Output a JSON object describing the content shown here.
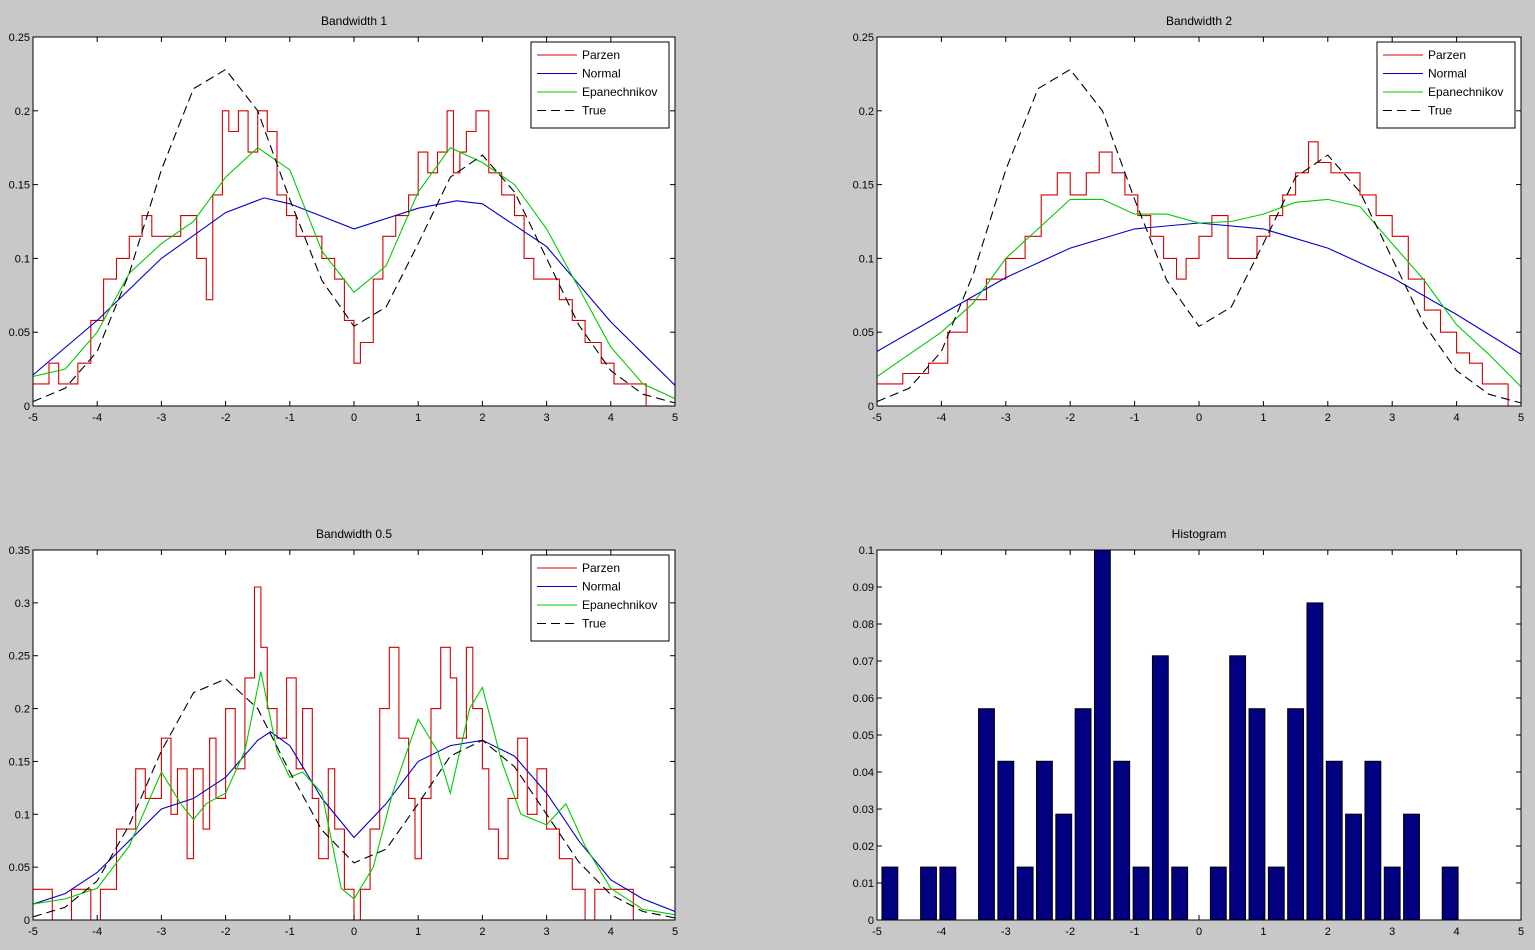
{
  "figure": {
    "background": "#c8c8c8",
    "colors": {
      "parzen": "#d40000",
      "normal": "#0000cc",
      "epanechnikov": "#00cc00",
      "true": "#000000",
      "hist": "#000080"
    }
  },
  "chart_data": [
    {
      "type": "line",
      "title": "Bandwidth 1",
      "xlim": [
        -5,
        5
      ],
      "ylim": [
        0,
        0.25
      ],
      "xticks": [
        "-5",
        "-4",
        "-3",
        "-2",
        "-1",
        "0",
        "1",
        "2",
        "3",
        "4",
        "5"
      ],
      "yticks": [
        "0",
        "0.05",
        "0.1",
        "0.15",
        "0.2",
        "0.25"
      ],
      "legend": {
        "position": "top-right",
        "entries": [
          "Parzen",
          "Normal",
          "Epanechnikov",
          "True"
        ]
      },
      "series": [
        {
          "name": "Parzen",
          "style": "solid",
          "color": "#d40000",
          "step": true,
          "x": [
            -5,
            -4.75,
            -4.6,
            -4.3,
            -4.1,
            -3.9,
            -3.7,
            -3.5,
            -3.3,
            -3.15,
            -3.0,
            -2.7,
            -2.45,
            -2.3,
            -2.2,
            -2.05,
            -1.95,
            -1.8,
            -1.65,
            -1.5,
            -1.35,
            -1.2,
            -1.05,
            -0.9,
            -0.7,
            -0.5,
            -0.3,
            -0.15,
            0,
            0.1,
            0.3,
            0.45,
            0.65,
            0.85,
            1.0,
            1.15,
            1.3,
            1.45,
            1.55,
            1.65,
            1.75,
            1.9,
            2.1,
            2.3,
            2.5,
            2.65,
            2.8,
            3.0,
            3.2,
            3.4,
            3.6,
            3.85,
            4.05,
            4.3,
            4.55,
            5
          ],
          "y": [
            0.015,
            0.029,
            0.015,
            0.029,
            0.058,
            0.086,
            0.1,
            0.115,
            0.129,
            0.115,
            0.115,
            0.129,
            0.1,
            0.072,
            0.143,
            0.2,
            0.186,
            0.2,
            0.172,
            0.2,
            0.186,
            0.143,
            0.129,
            0.115,
            0.115,
            0.1,
            0.086,
            0.058,
            0.029,
            0.043,
            0.086,
            0.115,
            0.129,
            0.143,
            0.172,
            0.158,
            0.172,
            0.2,
            0.158,
            0.172,
            0.186,
            0.2,
            0.158,
            0.143,
            0.129,
            0.1,
            0.086,
            0.086,
            0.072,
            0.058,
            0.043,
            0.029,
            0.015,
            0.015,
            0.0,
            0.0
          ]
        },
        {
          "name": "Normal",
          "style": "solid",
          "color": "#0000cc",
          "x": [
            -5,
            -4,
            -3,
            -2,
            -1.4,
            -1,
            0,
            1,
            1.6,
            2,
            3,
            4,
            5
          ],
          "y": [
            0.021,
            0.058,
            0.1,
            0.131,
            0.141,
            0.137,
            0.12,
            0.134,
            0.139,
            0.137,
            0.108,
            0.057,
            0.014
          ]
        },
        {
          "name": "Epanechnikov",
          "style": "solid",
          "color": "#00cc00",
          "x": [
            -5,
            -4.5,
            -4,
            -3.5,
            -3,
            -2.5,
            -2,
            -1.5,
            -1,
            -0.5,
            0,
            0.5,
            1,
            1.5,
            2,
            2.5,
            3,
            3.5,
            4,
            4.5,
            5
          ],
          "y": [
            0.02,
            0.025,
            0.05,
            0.09,
            0.11,
            0.125,
            0.155,
            0.175,
            0.16,
            0.105,
            0.077,
            0.095,
            0.145,
            0.175,
            0.165,
            0.15,
            0.12,
            0.08,
            0.04,
            0.015,
            0.005
          ]
        },
        {
          "name": "True",
          "style": "dashed",
          "color": "#000000",
          "x": [
            -5,
            -4.5,
            -4,
            -3.5,
            -3,
            -2.5,
            -2,
            -1.5,
            -1,
            -0.5,
            0,
            0.5,
            1,
            1.5,
            2,
            2.5,
            3,
            3.5,
            4,
            4.5,
            5
          ],
          "y": [
            0.003,
            0.012,
            0.037,
            0.09,
            0.16,
            0.215,
            0.228,
            0.2,
            0.14,
            0.085,
            0.054,
            0.067,
            0.11,
            0.155,
            0.17,
            0.145,
            0.1,
            0.055,
            0.024,
            0.008,
            0.002
          ]
        }
      ]
    },
    {
      "type": "line",
      "title": "Bandwidth 2",
      "xlim": [
        -5,
        5
      ],
      "ylim": [
        0,
        0.25
      ],
      "xticks": [
        "-5",
        "-4",
        "-3",
        "-2",
        "-1",
        "0",
        "1",
        "2",
        "3",
        "4",
        "5"
      ],
      "yticks": [
        "0",
        "0.05",
        "0.1",
        "0.15",
        "0.2",
        "0.25"
      ],
      "legend": {
        "position": "top-right",
        "entries": [
          "Parzen",
          "Normal",
          "Epanechnikov",
          "True"
        ]
      },
      "series": [
        {
          "name": "Parzen",
          "style": "solid",
          "color": "#d40000",
          "step": true,
          "x": [
            -5,
            -4.6,
            -4.2,
            -3.9,
            -3.6,
            -3.3,
            -3.0,
            -2.7,
            -2.45,
            -2.2,
            -2.0,
            -1.75,
            -1.55,
            -1.35,
            -1.15,
            -0.95,
            -0.75,
            -0.55,
            -0.35,
            -0.2,
            0,
            0.2,
            0.45,
            0.7,
            0.9,
            1.1,
            1.3,
            1.5,
            1.7,
            1.85,
            2.05,
            2.25,
            2.5,
            2.75,
            3.0,
            3.25,
            3.5,
            3.75,
            4.0,
            4.2,
            4.4,
            4.8,
            5
          ],
          "y": [
            0.015,
            0.022,
            0.029,
            0.05,
            0.072,
            0.086,
            0.1,
            0.115,
            0.143,
            0.158,
            0.143,
            0.158,
            0.172,
            0.158,
            0.143,
            0.129,
            0.115,
            0.1,
            0.086,
            0.1,
            0.115,
            0.129,
            0.1,
            0.1,
            0.115,
            0.129,
            0.143,
            0.158,
            0.179,
            0.165,
            0.158,
            0.158,
            0.143,
            0.129,
            0.115,
            0.086,
            0.065,
            0.05,
            0.036,
            0.029,
            0.015,
            0.0,
            0.0
          ]
        },
        {
          "name": "Normal",
          "style": "solid",
          "color": "#0000cc",
          "x": [
            -5,
            -4,
            -3,
            -2,
            -1,
            0,
            1,
            2,
            3,
            4,
            5
          ],
          "y": [
            0.037,
            0.062,
            0.087,
            0.107,
            0.12,
            0.124,
            0.12,
            0.107,
            0.087,
            0.062,
            0.035
          ]
        },
        {
          "name": "Epanechnikov",
          "style": "solid",
          "color": "#00cc00",
          "x": [
            -5,
            -4.5,
            -4,
            -3.5,
            -3,
            -2.5,
            -2,
            -1.5,
            -1,
            -0.5,
            0,
            0.5,
            1,
            1.5,
            2,
            2.5,
            3,
            3.5,
            4,
            4.5,
            5
          ],
          "y": [
            0.02,
            0.035,
            0.05,
            0.07,
            0.1,
            0.12,
            0.14,
            0.14,
            0.13,
            0.13,
            0.124,
            0.125,
            0.13,
            0.138,
            0.14,
            0.135,
            0.11,
            0.085,
            0.055,
            0.035,
            0.013
          ]
        },
        {
          "name": "True",
          "style": "dashed",
          "color": "#000000",
          "x": [
            -5,
            -4.5,
            -4,
            -3.5,
            -3,
            -2.5,
            -2,
            -1.5,
            -1,
            -0.5,
            0,
            0.5,
            1,
            1.5,
            2,
            2.5,
            3,
            3.5,
            4,
            4.5,
            5
          ],
          "y": [
            0.003,
            0.012,
            0.037,
            0.09,
            0.16,
            0.215,
            0.228,
            0.2,
            0.14,
            0.085,
            0.054,
            0.067,
            0.11,
            0.155,
            0.17,
            0.145,
            0.1,
            0.055,
            0.024,
            0.008,
            0.002
          ]
        }
      ]
    },
    {
      "type": "line",
      "title": "Bandwidth 0.5",
      "xlim": [
        -5,
        5
      ],
      "ylim": [
        0,
        0.35
      ],
      "xticks": [
        "-5",
        "-4",
        "-3",
        "-2",
        "-1",
        "0",
        "1",
        "2",
        "3",
        "4",
        "5"
      ],
      "yticks": [
        "0",
        "0.05",
        "0.1",
        "0.15",
        "0.2",
        "0.25",
        "0.3",
        "0.35"
      ],
      "legend": {
        "position": "top-right",
        "entries": [
          "Parzen",
          "Normal",
          "Epanechnikov",
          "True"
        ]
      },
      "series": [
        {
          "name": "Parzen",
          "style": "solid",
          "color": "#d40000",
          "step": true,
          "x": [
            -5,
            -4.7,
            -4.4,
            -4.1,
            -3.95,
            -3.7,
            -3.4,
            -3.25,
            -3.0,
            -2.85,
            -2.75,
            -2.6,
            -2.5,
            -2.35,
            -2.25,
            -2.15,
            -2.0,
            -1.85,
            -1.7,
            -1.55,
            -1.45,
            -1.35,
            -1.2,
            -1.05,
            -0.9,
            -0.8,
            -0.65,
            -0.55,
            -0.4,
            -0.3,
            -0.15,
            0,
            0.1,
            0.25,
            0.4,
            0.55,
            0.7,
            0.85,
            0.95,
            1.05,
            1.2,
            1.35,
            1.5,
            1.6,
            1.75,
            1.85,
            2.0,
            2.1,
            2.25,
            2.4,
            2.55,
            2.7,
            2.85,
            3.0,
            3.2,
            3.4,
            3.6,
            3.75,
            3.95,
            4.15,
            4.35,
            4.6,
            5
          ],
          "y": [
            0.029,
            0.0,
            0.029,
            0.0,
            0.029,
            0.086,
            0.143,
            0.115,
            0.172,
            0.1,
            0.143,
            0.058,
            0.143,
            0.086,
            0.172,
            0.115,
            0.2,
            0.143,
            0.229,
            0.315,
            0.258,
            0.2,
            0.172,
            0.229,
            0.143,
            0.2,
            0.115,
            0.058,
            0.143,
            0.086,
            0.029,
            0.0,
            0.029,
            0.086,
            0.2,
            0.258,
            0.172,
            0.115,
            0.058,
            0.115,
            0.2,
            0.258,
            0.229,
            0.172,
            0.258,
            0.2,
            0.143,
            0.086,
            0.058,
            0.115,
            0.172,
            0.1,
            0.143,
            0.086,
            0.058,
            0.029,
            0.0,
            0.029,
            0.029,
            0.029,
            0.0,
            0.0,
            0.0
          ]
        },
        {
          "name": "Normal",
          "style": "solid",
          "color": "#0000cc",
          "x": [
            -5,
            -4.5,
            -4,
            -3.5,
            -3,
            -2.5,
            -2,
            -1.5,
            -1.3,
            -1,
            -0.5,
            0,
            0.5,
            1,
            1.5,
            2,
            2.5,
            3,
            3.5,
            4,
            4.5,
            5
          ],
          "y": [
            0.015,
            0.025,
            0.045,
            0.075,
            0.105,
            0.115,
            0.135,
            0.17,
            0.178,
            0.165,
            0.115,
            0.078,
            0.11,
            0.15,
            0.165,
            0.17,
            0.155,
            0.12,
            0.075,
            0.038,
            0.02,
            0.008
          ]
        },
        {
          "name": "Epanechnikov",
          "style": "solid",
          "color": "#00cc00",
          "x": [
            -5,
            -4.5,
            -4,
            -3.5,
            -3,
            -2.7,
            -2.5,
            -2.3,
            -2,
            -1.7,
            -1.45,
            -1.2,
            -1,
            -0.8,
            -0.5,
            -0.2,
            0,
            0.3,
            0.6,
            1.0,
            1.3,
            1.5,
            1.8,
            2.0,
            2.3,
            2.6,
            3.0,
            3.3,
            3.6,
            4.0,
            4.5,
            5
          ],
          "y": [
            0.015,
            0.02,
            0.03,
            0.07,
            0.14,
            0.11,
            0.095,
            0.11,
            0.12,
            0.16,
            0.235,
            0.16,
            0.135,
            0.14,
            0.12,
            0.03,
            0.02,
            0.05,
            0.12,
            0.19,
            0.16,
            0.12,
            0.2,
            0.22,
            0.15,
            0.1,
            0.09,
            0.11,
            0.07,
            0.03,
            0.01,
            0.005
          ]
        },
        {
          "name": "True",
          "style": "dashed",
          "color": "#000000",
          "x": [
            -5,
            -4.5,
            -4,
            -3.5,
            -3,
            -2.5,
            -2,
            -1.5,
            -1,
            -0.5,
            0,
            0.5,
            1,
            1.5,
            2,
            2.5,
            3,
            3.5,
            4,
            4.5,
            5
          ],
          "y": [
            0.003,
            0.012,
            0.037,
            0.09,
            0.16,
            0.215,
            0.228,
            0.2,
            0.14,
            0.085,
            0.054,
            0.067,
            0.11,
            0.155,
            0.17,
            0.145,
            0.1,
            0.055,
            0.024,
            0.008,
            0.002
          ]
        }
      ]
    },
    {
      "type": "bar",
      "title": "Histogram",
      "xlim": [
        -5,
        5
      ],
      "ylim": [
        0,
        0.1
      ],
      "xticks": [
        "-5",
        "-4",
        "-3",
        "-2",
        "-1",
        "0",
        "1",
        "2",
        "3",
        "4",
        "5"
      ],
      "yticks": [
        "0",
        "0.01",
        "0.02",
        "0.03",
        "0.04",
        "0.05",
        "0.06",
        "0.07",
        "0.08",
        "0.09",
        "0.1"
      ],
      "bar_color": "#000080",
      "x": [
        -4.8,
        -4.5,
        -4.2,
        -3.9,
        -3.6,
        -3.3,
        -3.0,
        -2.7,
        -2.4,
        -2.1,
        -1.8,
        -1.5,
        -1.2,
        -0.9,
        -0.6,
        -0.3,
        0.0,
        0.3,
        0.6,
        0.9,
        1.2,
        1.5,
        1.8,
        2.1,
        2.4,
        2.7,
        3.0,
        3.3,
        3.6,
        3.9,
        4.2
      ],
      "values": [
        0.0143,
        0,
        0.0143,
        0.0143,
        0,
        0.0571,
        0.0429,
        0.0143,
        0.0429,
        0.0286,
        0.0571,
        0.1,
        0.0429,
        0.0143,
        0.0714,
        0.0143,
        0,
        0.0143,
        0.0714,
        0.0571,
        0.0143,
        0.0571,
        0.0857,
        0.0429,
        0.0286,
        0.0429,
        0.0143,
        0.0286,
        0,
        0.0143,
        0
      ]
    }
  ]
}
